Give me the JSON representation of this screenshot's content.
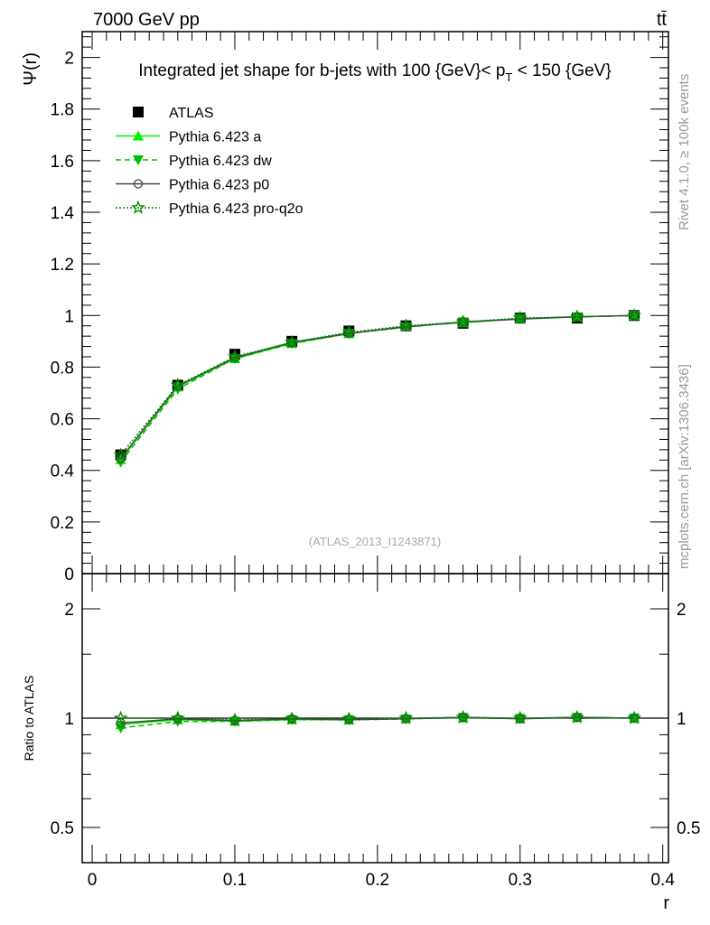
{
  "header": {
    "left": "7000 GeV pp",
    "right": "tt̄"
  },
  "side": {
    "rivet": "Rivet 4.1.0, ≥ 100k events",
    "mcplots": "mcplots.cern.ch [arXiv:1306.3436]"
  },
  "watermark": "(ATLAS_2013_I1243871)",
  "chart_data": {
    "type": "line",
    "title": {
      "pre": "Integrated jet shape for b-jets with 100 {GeV}< p",
      "sub": "T",
      "post": " < 150 {GeV}"
    },
    "ylabel": "Ψ(r)",
    "ratio_ylabel": "Ratio to ATLAS",
    "xlabel": "r",
    "xlim": [
      -0.007,
      0.404
    ],
    "ylim": [
      0,
      2.1
    ],
    "ratio_ylim": [
      0.4,
      2.5
    ],
    "ratio_scale": "log",
    "x_ticks": [
      "0",
      "0.1",
      "0.2",
      "0.3",
      "0.4"
    ],
    "y_ticks": [
      "0",
      "0.2",
      "0.4",
      "0.6",
      "0.8",
      "1",
      "1.2",
      "1.4",
      "1.6",
      "1.8",
      "2"
    ],
    "ratio_ticks": [
      "0.5",
      "1",
      "2"
    ],
    "legend_position": "top-left",
    "x": [
      0.02,
      0.06,
      0.1,
      0.14,
      0.18,
      0.22,
      0.26,
      0.3,
      0.34,
      0.38
    ],
    "series": [
      {
        "name": "ATLAS",
        "color": "#000000",
        "marker": "square",
        "dash": "",
        "values": [
          0.46,
          0.73,
          0.85,
          0.9,
          0.94,
          0.96,
          0.97,
          0.99,
          0.99,
          1.0
        ]
      },
      {
        "name": "Pythia 6.423 a",
        "color": "#00ee00",
        "marker": "triangle-up",
        "dash": "",
        "values": [
          0.442,
          0.723,
          0.833,
          0.892,
          0.93,
          0.958,
          0.972,
          0.988,
          0.995,
          1.0
        ]
      },
      {
        "name": "Pythia 6.423 dw",
        "color": "#00bb00",
        "marker": "triangle-down",
        "dash": "6,4",
        "values": [
          0.432,
          0.715,
          0.833,
          0.891,
          0.93,
          0.955,
          0.975,
          0.988,
          0.995,
          1.0
        ]
      },
      {
        "name": "Pythia 6.423 p0",
        "color": "#444444",
        "marker": "circle",
        "dash": "",
        "values": [
          0.446,
          0.727,
          0.837,
          0.896,
          0.931,
          0.956,
          0.975,
          0.986,
          0.995,
          1.0
        ]
      },
      {
        "name": "Pythia 6.423 pro-q2o",
        "color": "#008800",
        "marker": "star",
        "dash": "2,2",
        "values": [
          0.46,
          0.73,
          0.84,
          0.896,
          0.935,
          0.96,
          0.975,
          0.99,
          0.995,
          1.0
        ]
      }
    ]
  }
}
